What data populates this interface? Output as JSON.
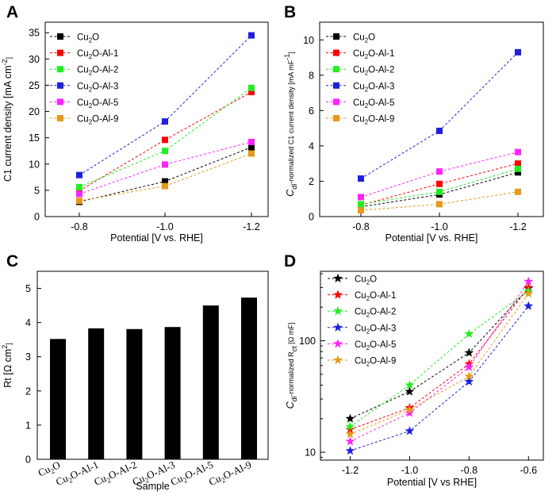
{
  "panel_letters": [
    "A",
    "B",
    "C",
    "D"
  ],
  "legend_subscript_2": "2",
  "colors": {
    "Cu2O": "#000000",
    "Cu2O-Al-1": "#ff0000",
    "Cu2O-Al-2": "#22ee22",
    "Cu2O-Al-3": "#1f1fdd",
    "Cu2O-Al-5": "#ff22ff",
    "Cu2O-Al-9": "#e69a1a"
  },
  "chart_data": [
    {
      "panel": "A",
      "type": "line",
      "marker": "square",
      "categories": [
        "-0.8",
        "-1.0",
        "-1.2"
      ],
      "xlabel": "Potential [V vs. RHE]",
      "ylabel": "C1 current density [mA cm",
      "ylabel_sup": "-2",
      "ylabel_end": "]",
      "ylim": [
        0,
        37
      ],
      "yticks": [
        0,
        5,
        10,
        15,
        20,
        25,
        30,
        35
      ],
      "series": [
        {
          "name": "Cu2O",
          "label": "Cu",
          "label_sub": "2",
          "label_rest": "O",
          "color": "#000000",
          "values": [
            2.8,
            6.7,
            13.2
          ]
        },
        {
          "name": "Cu2O-Al-1",
          "label": "Cu",
          "label_sub": "2",
          "label_rest": "O-Al-1",
          "color": "#ff0000",
          "values": [
            4.9,
            14.6,
            23.7
          ]
        },
        {
          "name": "Cu2O-Al-2",
          "label": "Cu",
          "label_sub": "2",
          "label_rest": "O-Al-2",
          "color": "#22ee22",
          "values": [
            5.6,
            12.5,
            24.5
          ]
        },
        {
          "name": "Cu2O-Al-3",
          "label": "Cu",
          "label_sub": "2",
          "label_rest": "O-Al-3",
          "color": "#1f1fdd",
          "values": [
            7.9,
            18.1,
            34.5
          ]
        },
        {
          "name": "Cu2O-Al-5",
          "label": "Cu",
          "label_sub": "2",
          "label_rest": "O-Al-5",
          "color": "#ff22ff",
          "values": [
            4.3,
            9.9,
            14.2
          ]
        },
        {
          "name": "Cu2O-Al-9",
          "label": "Cu",
          "label_sub": "2",
          "label_rest": "O-Al-9",
          "color": "#e69a1a",
          "values": [
            3.0,
            5.8,
            12.0
          ]
        }
      ]
    },
    {
      "panel": "B",
      "type": "line",
      "marker": "square",
      "categories": [
        "-0.8",
        "-1.0",
        "-1.2"
      ],
      "xlabel": "Potential [V vs. RHE]",
      "ylabel_pre": "C",
      "ylabel_sub": "dl",
      "ylabel": "-normalized C1 current density [mA mF",
      "ylabel_sup": "-1",
      "ylabel_end": "]",
      "ylim": [
        0,
        11
      ],
      "yticks": [
        0,
        2,
        4,
        6,
        8,
        10
      ],
      "series": [
        {
          "name": "Cu2O",
          "label": "Cu",
          "label_sub": "2",
          "label_rest": "O",
          "color": "#000000",
          "values": [
            0.55,
            1.25,
            2.5
          ]
        },
        {
          "name": "Cu2O-Al-1",
          "label": "Cu",
          "label_sub": "2",
          "label_rest": "O-Al-1",
          "color": "#ff0000",
          "values": [
            0.65,
            1.85,
            3.0
          ]
        },
        {
          "name": "Cu2O-Al-2",
          "label": "Cu",
          "label_sub": "2",
          "label_rest": "O-Al-2",
          "color": "#22ee22",
          "values": [
            0.7,
            1.4,
            2.7
          ]
        },
        {
          "name": "Cu2O-Al-3",
          "label": "Cu",
          "label_sub": "2",
          "label_rest": "O-Al-3",
          "color": "#1f1fdd",
          "values": [
            2.15,
            4.85,
            9.3
          ]
        },
        {
          "name": "Cu2O-Al-5",
          "label": "Cu",
          "label_sub": "2",
          "label_rest": "O-Al-5",
          "color": "#ff22ff",
          "values": [
            1.1,
            2.55,
            3.65
          ]
        },
        {
          "name": "Cu2O-Al-9",
          "label": "Cu",
          "label_sub": "2",
          "label_rest": "O-Al-9",
          "color": "#e69a1a",
          "values": [
            0.35,
            0.7,
            1.4
          ]
        }
      ]
    },
    {
      "panel": "C",
      "type": "bar",
      "categories": [
        {
          "base": "Cu",
          "sub": "2",
          "rest": "O"
        },
        {
          "base": "Cu",
          "sub": "2",
          "rest": "O-Al-1"
        },
        {
          "base": "Cu",
          "sub": "2",
          "rest": "O-Al-2"
        },
        {
          "base": "Cu",
          "sub": "2",
          "rest": "O-Al-3"
        },
        {
          "base": "Cu",
          "sub": "2",
          "rest": "O-Al-5"
        },
        {
          "base": "Cu",
          "sub": "2",
          "rest": "O-Al-9"
        }
      ],
      "values": [
        3.52,
        3.83,
        3.81,
        3.87,
        4.5,
        4.73
      ],
      "xlabel": "Sample",
      "ylabel": "Rt [Ω cm",
      "ylabel_sup": "2",
      "ylabel_end": "]",
      "ylim": [
        0,
        5.5
      ],
      "yticks": [
        0,
        1,
        2,
        3,
        4,
        5
      ]
    },
    {
      "panel": "D",
      "type": "line",
      "marker": "star",
      "yscale": "log",
      "x": [
        -1.2,
        -1.0,
        -0.8,
        -0.6
      ],
      "xticks": [
        "-1.2",
        "-1.0",
        "-0.8",
        "-0.6"
      ],
      "xlim": [
        -1.3,
        -0.55
      ],
      "xlabel": "Potential [V vs RHE]",
      "ylabel_pre": "C",
      "ylabel_sub": "dl",
      "ylabel": "-normalized R",
      "ylabel_sub2": "ct",
      "ylabel_end": " [Ω mF]",
      "ylim": [
        8.5,
        420
      ],
      "yticks": [
        "10",
        "100"
      ],
      "series": [
        {
          "name": "Cu2O",
          "label": "Cu",
          "label_sub": "2",
          "label_rest": "O",
          "color": "#000000",
          "values": [
            20,
            35,
            78,
            295
          ]
        },
        {
          "name": "Cu2O-Al-1",
          "label": "Cu",
          "label_sub": "2",
          "label_rest": "O-Al-1",
          "color": "#ff0000",
          "values": [
            16,
            25,
            62,
            300
          ]
        },
        {
          "name": "Cu2O-Al-2",
          "label": "Cu",
          "label_sub": "2",
          "label_rest": "O-Al-2",
          "color": "#22ee22",
          "values": [
            17,
            40,
            115,
            280
          ]
        },
        {
          "name": "Cu2O-Al-3",
          "label": "Cu",
          "label_sub": "2",
          "label_rest": "O-Al-3",
          "color": "#1f1fdd",
          "values": [
            10.3,
            15.5,
            43,
            205
          ]
        },
        {
          "name": "Cu2O-Al-5",
          "label": "Cu",
          "label_sub": "2",
          "label_rest": "O-Al-5",
          "color": "#ff22ff",
          "values": [
            12.5,
            22.5,
            58,
            340
          ]
        },
        {
          "name": "Cu2O-Al-9",
          "label": "Cu",
          "label_sub": "2",
          "label_rest": "O-Al-9",
          "color": "#e69a1a",
          "values": [
            14.5,
            24,
            48,
            265
          ]
        }
      ]
    }
  ]
}
